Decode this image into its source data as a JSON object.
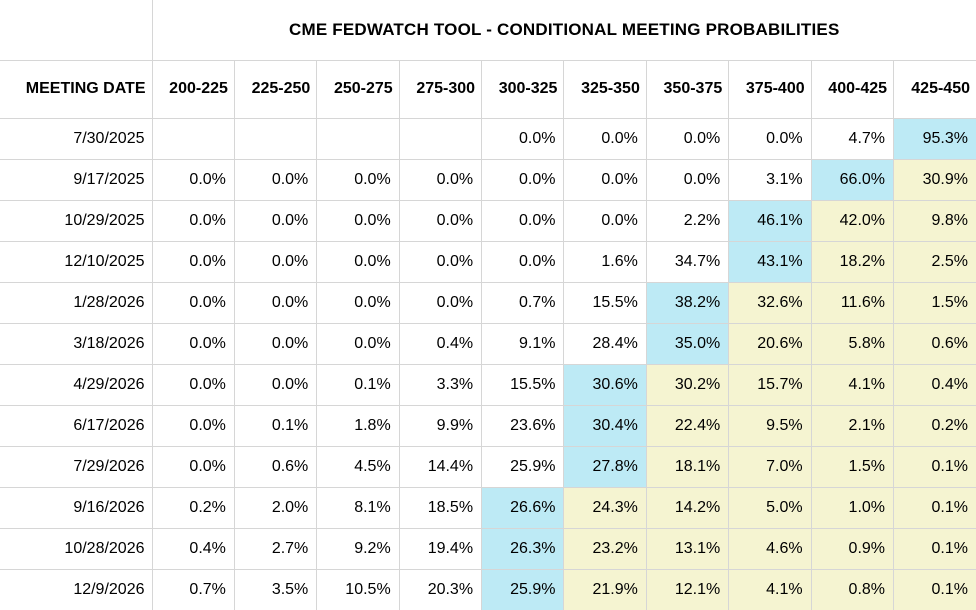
{
  "colors": {
    "max_cell_bg": "#bdeaf5",
    "tail_cell_bg": "#f5f4d1",
    "grid_line": "#d6d6d6",
    "text": "#000000",
    "background": "#ffffff"
  },
  "chart_data": {
    "type": "table",
    "title": "CME FEDWATCH TOOL - CONDITIONAL MEETING PROBABILITIES",
    "row_header": "MEETING DATE",
    "columns": [
      "200-225",
      "225-250",
      "250-275",
      "275-300",
      "300-325",
      "325-350",
      "350-375",
      "375-400",
      "400-425",
      "425-450"
    ],
    "highlight_legend": {
      "max": "cyan highlight marks the highest probability cell in each row",
      "tail": "pale yellow highlight marks cells to the right of the maximum"
    },
    "rows": [
      {
        "date": "7/30/2025",
        "values": [
          "",
          "",
          "",
          "",
          "0.0%",
          "0.0%",
          "0.0%",
          "0.0%",
          "4.7%",
          "95.3%"
        ],
        "max_col_index": 9
      },
      {
        "date": "9/17/2025",
        "values": [
          "0.0%",
          "0.0%",
          "0.0%",
          "0.0%",
          "0.0%",
          "0.0%",
          "0.0%",
          "3.1%",
          "66.0%",
          "30.9%"
        ],
        "max_col_index": 8
      },
      {
        "date": "10/29/2025",
        "values": [
          "0.0%",
          "0.0%",
          "0.0%",
          "0.0%",
          "0.0%",
          "0.0%",
          "2.2%",
          "46.1%",
          "42.0%",
          "9.8%"
        ],
        "max_col_index": 7
      },
      {
        "date": "12/10/2025",
        "values": [
          "0.0%",
          "0.0%",
          "0.0%",
          "0.0%",
          "0.0%",
          "1.6%",
          "34.7%",
          "43.1%",
          "18.2%",
          "2.5%"
        ],
        "max_col_index": 7
      },
      {
        "date": "1/28/2026",
        "values": [
          "0.0%",
          "0.0%",
          "0.0%",
          "0.0%",
          "0.7%",
          "15.5%",
          "38.2%",
          "32.6%",
          "11.6%",
          "1.5%"
        ],
        "max_col_index": 6
      },
      {
        "date": "3/18/2026",
        "values": [
          "0.0%",
          "0.0%",
          "0.0%",
          "0.4%",
          "9.1%",
          "28.4%",
          "35.0%",
          "20.6%",
          "5.8%",
          "0.6%"
        ],
        "max_col_index": 6
      },
      {
        "date": "4/29/2026",
        "values": [
          "0.0%",
          "0.0%",
          "0.1%",
          "3.3%",
          "15.5%",
          "30.6%",
          "30.2%",
          "15.7%",
          "4.1%",
          "0.4%"
        ],
        "max_col_index": 5
      },
      {
        "date": "6/17/2026",
        "values": [
          "0.0%",
          "0.1%",
          "1.8%",
          "9.9%",
          "23.6%",
          "30.4%",
          "22.4%",
          "9.5%",
          "2.1%",
          "0.2%"
        ],
        "max_col_index": 5
      },
      {
        "date": "7/29/2026",
        "values": [
          "0.0%",
          "0.6%",
          "4.5%",
          "14.4%",
          "25.9%",
          "27.8%",
          "18.1%",
          "7.0%",
          "1.5%",
          "0.1%"
        ],
        "max_col_index": 5
      },
      {
        "date": "9/16/2026",
        "values": [
          "0.2%",
          "2.0%",
          "8.1%",
          "18.5%",
          "26.6%",
          "24.3%",
          "14.2%",
          "5.0%",
          "1.0%",
          "0.1%"
        ],
        "max_col_index": 4
      },
      {
        "date": "10/28/2026",
        "values": [
          "0.4%",
          "2.7%",
          "9.2%",
          "19.4%",
          "26.3%",
          "23.2%",
          "13.1%",
          "4.6%",
          "0.9%",
          "0.1%"
        ],
        "max_col_index": 4
      },
      {
        "date": "12/9/2026",
        "values": [
          "0.7%",
          "3.5%",
          "10.5%",
          "20.3%",
          "25.9%",
          "21.9%",
          "12.1%",
          "4.1%",
          "0.8%",
          "0.1%"
        ],
        "max_col_index": 4
      }
    ]
  }
}
